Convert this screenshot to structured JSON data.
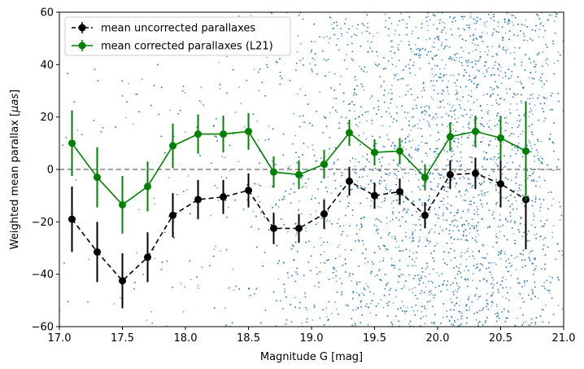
{
  "chart_data": {
    "type": "scatter",
    "xlabel": "Magnitude G [mag]",
    "ylabel_prefix": "Weighted mean parallax [",
    "ylabel_unit": "μas",
    "ylabel_suffix": "]",
    "xlim": [
      17.0,
      21.0
    ],
    "ylim": [
      -60,
      60
    ],
    "xticks": [
      17.0,
      17.5,
      18.0,
      18.5,
      19.0,
      19.5,
      20.0,
      20.5,
      21.0
    ],
    "xtick_labels": [
      "17.0",
      "17.5",
      "18.0",
      "18.5",
      "19.0",
      "19.5",
      "20.0",
      "20.5",
      "21.0"
    ],
    "yticks": [
      -60,
      -40,
      -20,
      0,
      20,
      40,
      60
    ],
    "ytick_labels": [
      "−60",
      "−40",
      "−20",
      "0",
      "20",
      "40",
      "60"
    ],
    "reference_line": {
      "y": 0,
      "style": "dashed",
      "color": "#808080"
    },
    "background_scatter": {
      "color": "#1f77b4",
      "description": "individual source parallaxes, density increasing with magnitude",
      "approx_count": 6000
    },
    "legend": {
      "position": "top-left"
    },
    "series": [
      {
        "name": "mean uncorrected parallaxes",
        "color": "#000000",
        "linestyle": "dashed",
        "marker": "circle",
        "x": [
          17.1,
          17.3,
          17.5,
          17.7,
          17.9,
          18.1,
          18.3,
          18.5,
          18.7,
          18.9,
          19.1,
          19.3,
          19.5,
          19.7,
          19.9,
          20.1,
          20.3,
          20.5,
          20.7
        ],
        "y": [
          -19,
          -31.5,
          -42.5,
          -33.5,
          -17.5,
          -11.5,
          -10.5,
          -8,
          -22.5,
          -22.5,
          -17,
          -4.5,
          -10,
          -8.5,
          -17.5,
          -2,
          -1.5,
          -5.5,
          -11.5
        ],
        "err": [
          12.5,
          11.5,
          10.5,
          9.5,
          8.5,
          7.5,
          6.5,
          6.5,
          6,
          5.5,
          5.5,
          5.5,
          5,
          5,
          5,
          5.5,
          6,
          9,
          19
        ]
      },
      {
        "name": "mean corrected parallaxes (L21)",
        "color": "#008000",
        "linestyle": "solid",
        "marker": "circle",
        "x": [
          17.1,
          17.3,
          17.5,
          17.7,
          17.9,
          18.1,
          18.3,
          18.5,
          18.7,
          18.9,
          19.1,
          19.3,
          19.5,
          19.7,
          19.9,
          20.1,
          20.3,
          20.5,
          20.7
        ],
        "y": [
          10,
          -3,
          -13.5,
          -6.5,
          9,
          13.5,
          13.5,
          14.5,
          -1,
          -2,
          2,
          14,
          6.5,
          7,
          -3,
          12.5,
          14.5,
          12,
          7
        ],
        "err": [
          12.5,
          11.5,
          11,
          9.5,
          8.5,
          7.5,
          7,
          7,
          6,
          5.5,
          5.5,
          5,
          5,
          5,
          5,
          5.5,
          6,
          8.5,
          19
        ]
      }
    ]
  }
}
